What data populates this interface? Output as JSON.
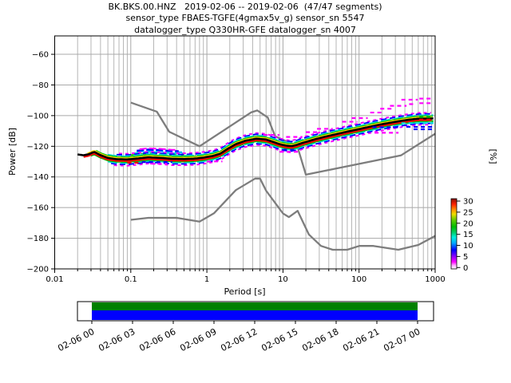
{
  "chart_data": {
    "type": "line",
    "title_lines": [
      "BK.BKS.00.HNZ   2019-02-06 -- 2019-02-06  (47/47 segments)",
      "sensor_type FBAES-TGFE(4gmax5v_g) sensor_sn 5547",
      "datalogger_type Q330HR-GFE datalogger_sn 4007"
    ],
    "xlabel": "Period [s]",
    "ylabel": "Power [dB]",
    "right_axis_label": "[%]",
    "x_scale": "log",
    "xlim": [
      0.01,
      1000
    ],
    "ylim": [
      -200,
      -48
    ],
    "x_ticks": [
      0.01,
      0.1,
      1,
      10,
      100,
      1000
    ],
    "x_tick_labels": [
      "0.01",
      "0.1",
      "1",
      "10",
      "100",
      "1000"
    ],
    "y_ticks": [
      -60,
      -80,
      -100,
      -120,
      -140,
      -160,
      -180,
      -200
    ],
    "y_tick_labels": [
      "−60",
      "−80",
      "−100",
      "−120",
      "−140",
      "−160",
      "−180",
      "−200"
    ],
    "grid": "both-x-major-y",
    "colors": {
      "noise_model": "#7d7d7d",
      "grid_major": "#a8a8a8",
      "grid_minor": "#b6b6b6",
      "frame": "#000000",
      "center_line": "#000000"
    },
    "noise_models": {
      "nhnm": [
        [
          0.1,
          -91.5
        ],
        [
          0.22,
          -97.4
        ],
        [
          0.32,
          -110.5
        ],
        [
          0.8,
          -120.0
        ],
        [
          3.8,
          -97.9
        ],
        [
          4.6,
          -96.6
        ],
        [
          6.3,
          -101.2
        ],
        [
          7.9,
          -113.5
        ],
        [
          15.4,
          -119.9
        ],
        [
          20.0,
          -138.5
        ],
        [
          354.8,
          -126.0
        ],
        [
          1000,
          -111.8
        ]
      ],
      "nlnm": [
        [
          0.1,
          -168.0
        ],
        [
          0.17,
          -166.7
        ],
        [
          0.4,
          -166.7
        ],
        [
          0.8,
          -169.2
        ],
        [
          1.24,
          -163.7
        ],
        [
          2.4,
          -148.6
        ],
        [
          4.3,
          -141.1
        ],
        [
          5.0,
          -141.1
        ],
        [
          6.0,
          -149.0
        ],
        [
          10.0,
          -163.8
        ],
        [
          12.0,
          -166.2
        ],
        [
          15.6,
          -162.1
        ],
        [
          21.9,
          -177.5
        ],
        [
          31.6,
          -185.0
        ],
        [
          45.0,
          -187.5
        ],
        [
          70.0,
          -187.5
        ],
        [
          101.0,
          -185.0
        ],
        [
          154.0,
          -185.0
        ],
        [
          328.0,
          -187.5
        ],
        [
          600.0,
          -184.4
        ],
        [
          1000,
          -178.5
        ]
      ]
    },
    "psd_distribution": {
      "center_line": [
        [
          0.02,
          -125.3
        ],
        [
          0.024,
          -125.9
        ],
        [
          0.028,
          -125.2
        ],
        [
          0.033,
          -123.6
        ],
        [
          0.04,
          -125.8
        ],
        [
          0.05,
          -127.6
        ],
        [
          0.065,
          -128.4
        ],
        [
          0.09,
          -128.6
        ],
        [
          0.12,
          -128.0
        ],
        [
          0.17,
          -127.2
        ],
        [
          0.25,
          -127.6
        ],
        [
          0.35,
          -128.2
        ],
        [
          0.5,
          -128.3
        ],
        [
          0.7,
          -128.0
        ],
        [
          0.9,
          -127.4
        ],
        [
          1.2,
          -126.3
        ],
        [
          1.5,
          -124.8
        ],
        [
          1.9,
          -121.5
        ],
        [
          2.4,
          -118.6
        ],
        [
          3.2,
          -116.4
        ],
        [
          4.5,
          -115.0
        ],
        [
          6.0,
          -115.6
        ],
        [
          7.5,
          -117.2
        ],
        [
          9.0,
          -118.6
        ],
        [
          11.0,
          -119.6
        ],
        [
          13.0,
          -119.9
        ],
        [
          15.0,
          -119.2
        ],
        [
          18.0,
          -117.8
        ],
        [
          22.0,
          -116.6
        ],
        [
          27.0,
          -115.3
        ],
        [
          35.0,
          -113.9
        ],
        [
          45.0,
          -112.6
        ],
        [
          60.0,
          -111.2
        ],
        [
          80.0,
          -109.8
        ],
        [
          100.0,
          -108.8
        ],
        [
          140.0,
          -107.2
        ],
        [
          200.0,
          -105.6
        ],
        [
          280.0,
          -104.3
        ],
        [
          380.0,
          -103.2
        ],
        [
          500.0,
          -102.4
        ],
        [
          620.0,
          -101.9
        ],
        [
          950.0,
          -101.8
        ]
      ],
      "band_offsets": [
        {
          "color": "#ff00ff",
          "offset_db": -4.1,
          "dash": "4 4",
          "width": 2.0,
          "p1": 0.06,
          "p2": 950
        },
        {
          "color": "#0000ff",
          "offset_db": -3.2,
          "dash": "7 4",
          "width": 2.0,
          "p1": 0.055,
          "p2": 950
        },
        {
          "color": "#00dddd",
          "offset_db": -2.4,
          "dash": "12 4",
          "width": 2.0,
          "p1": 0.05,
          "p2": 950
        },
        {
          "color": "#00bb00",
          "offset_db": -1.7,
          "dash": null,
          "width": 2.0,
          "p1": 0.03,
          "p2": 950
        },
        {
          "color": "#ff0000",
          "offset_db": -1.05,
          "dash": null,
          "width": 2.2,
          "p1": 0.024,
          "p2": 950
        },
        {
          "color": "#ff00ff",
          "offset_db": 3.7,
          "dash": "4 4",
          "width": 2.0,
          "p1": 0.07,
          "p2": 900
        },
        {
          "color": "#0000ff",
          "offset_db": 2.9,
          "dash": "7 4",
          "width": 2.0,
          "p1": 0.065,
          "p2": 950
        },
        {
          "color": "#00dddd",
          "offset_db": 2.1,
          "dash": "12 4",
          "width": 2.0,
          "p1": 0.05,
          "p2": 950
        },
        {
          "color": "#00bb00",
          "offset_db": 1.45,
          "dash": null,
          "width": 1.8,
          "p1": 0.035,
          "p2": 950
        },
        {
          "color": "#ffdd00",
          "offset_db": 0.85,
          "dash": null,
          "width": 1.8,
          "p1": 0.027,
          "p2": 950
        },
        {
          "color": "#000000",
          "offset_db": 0.0,
          "dash": null,
          "width": 2.6,
          "p1": 0.02,
          "p2": 950
        }
      ],
      "bulge_extras": [
        {
          "color": "#00bb00",
          "offset_db": 2.6,
          "p1": 0.1,
          "p2": 0.52,
          "width": 2.0
        },
        {
          "color": "#00dddd",
          "offset_db": 3.6,
          "p1": 0.11,
          "p2": 0.5,
          "width": 2.2
        },
        {
          "color": "#00aaff",
          "offset_db": 4.4,
          "p1": 0.12,
          "p2": 0.48,
          "width": 2.2
        },
        {
          "color": "#0000ff",
          "offset_db": 5.1,
          "p1": 0.12,
          "p2": 0.45,
          "width": 2.2
        },
        {
          "color": "#ff00ff",
          "offset_db": 5.9,
          "p1": 0.13,
          "p2": 0.4,
          "width": 2.0
        }
      ],
      "outlier_dashes": [
        {
          "color": "#ff00ff",
          "segs": [
            [
              140,
              200,
              -98.0
            ],
            [
              190,
              285,
              -95.5
            ],
            [
              255,
              420,
              -93.6
            ],
            [
              360,
              590,
              -89.6
            ],
            [
              620,
              950,
              -88.9
            ],
            [
              620,
              950,
              -91.9
            ],
            [
              455,
              560,
              -92.5
            ],
            [
              80,
              130,
              -101.6
            ],
            [
              60,
              95,
              -104.0
            ],
            [
              28,
              45,
              -108.6
            ],
            [
              20,
              30,
              -110.8
            ],
            [
              5.5,
              9,
              -112.6
            ],
            [
              11,
              18,
              -113.9
            ],
            [
              160,
              330,
              -111.2
            ],
            [
              9,
              16,
              -123.6
            ],
            [
              0.18,
              0.3,
              -131.3
            ],
            [
              1.0,
              1.6,
              -129.9
            ]
          ]
        },
        {
          "color": "#0000ff",
          "segs": [
            [
              150,
              360,
              -107.6
            ],
            [
              420,
              950,
              -107.3
            ],
            [
              520,
              950,
              -108.9
            ],
            [
              10,
              15,
              -122.3
            ],
            [
              0.14,
              0.35,
              -130.3
            ]
          ]
        },
        {
          "color": "#00dddd",
          "segs": [
            [
              360,
              950,
              -104.9
            ]
          ]
        },
        {
          "color": "#00bb00",
          "segs": [
            [
              620,
              950,
              -100.9
            ]
          ]
        },
        {
          "color": "#ff0000",
          "segs": [
            [
              0.09,
              0.14,
              -130.7
            ],
            [
              620,
              950,
              -102.6
            ]
          ]
        }
      ]
    },
    "colorbar": {
      "label": "[%]",
      "vmin": 0,
      "vmax": 30,
      "ticks": [
        30,
        25,
        20,
        15,
        10,
        5,
        0
      ],
      "gradient": [
        [
          0.0,
          "#ffffff"
        ],
        [
          0.05,
          "#ffaaff"
        ],
        [
          0.1,
          "#ff00ff"
        ],
        [
          0.18,
          "#8800ff"
        ],
        [
          0.27,
          "#0000ff"
        ],
        [
          0.37,
          "#00aaff"
        ],
        [
          0.45,
          "#00eedd"
        ],
        [
          0.52,
          "#00cc66"
        ],
        [
          0.6,
          "#00bb00"
        ],
        [
          0.7,
          "#66cc00"
        ],
        [
          0.78,
          "#eedd00"
        ],
        [
          0.85,
          "#ff8800"
        ],
        [
          0.92,
          "#ff2200"
        ],
        [
          1.0,
          "#881100"
        ]
      ]
    },
    "timeline": {
      "date_labels": [
        "02-06 00",
        "02-06 03",
        "02-06 06",
        "02-06 09",
        "02-06 12",
        "02-06 15",
        "02-06 18",
        "02-06 21",
        "02-07 00"
      ],
      "coverage_top_color": "#008000",
      "coverage_bottom_color": "#0000ff"
    }
  }
}
